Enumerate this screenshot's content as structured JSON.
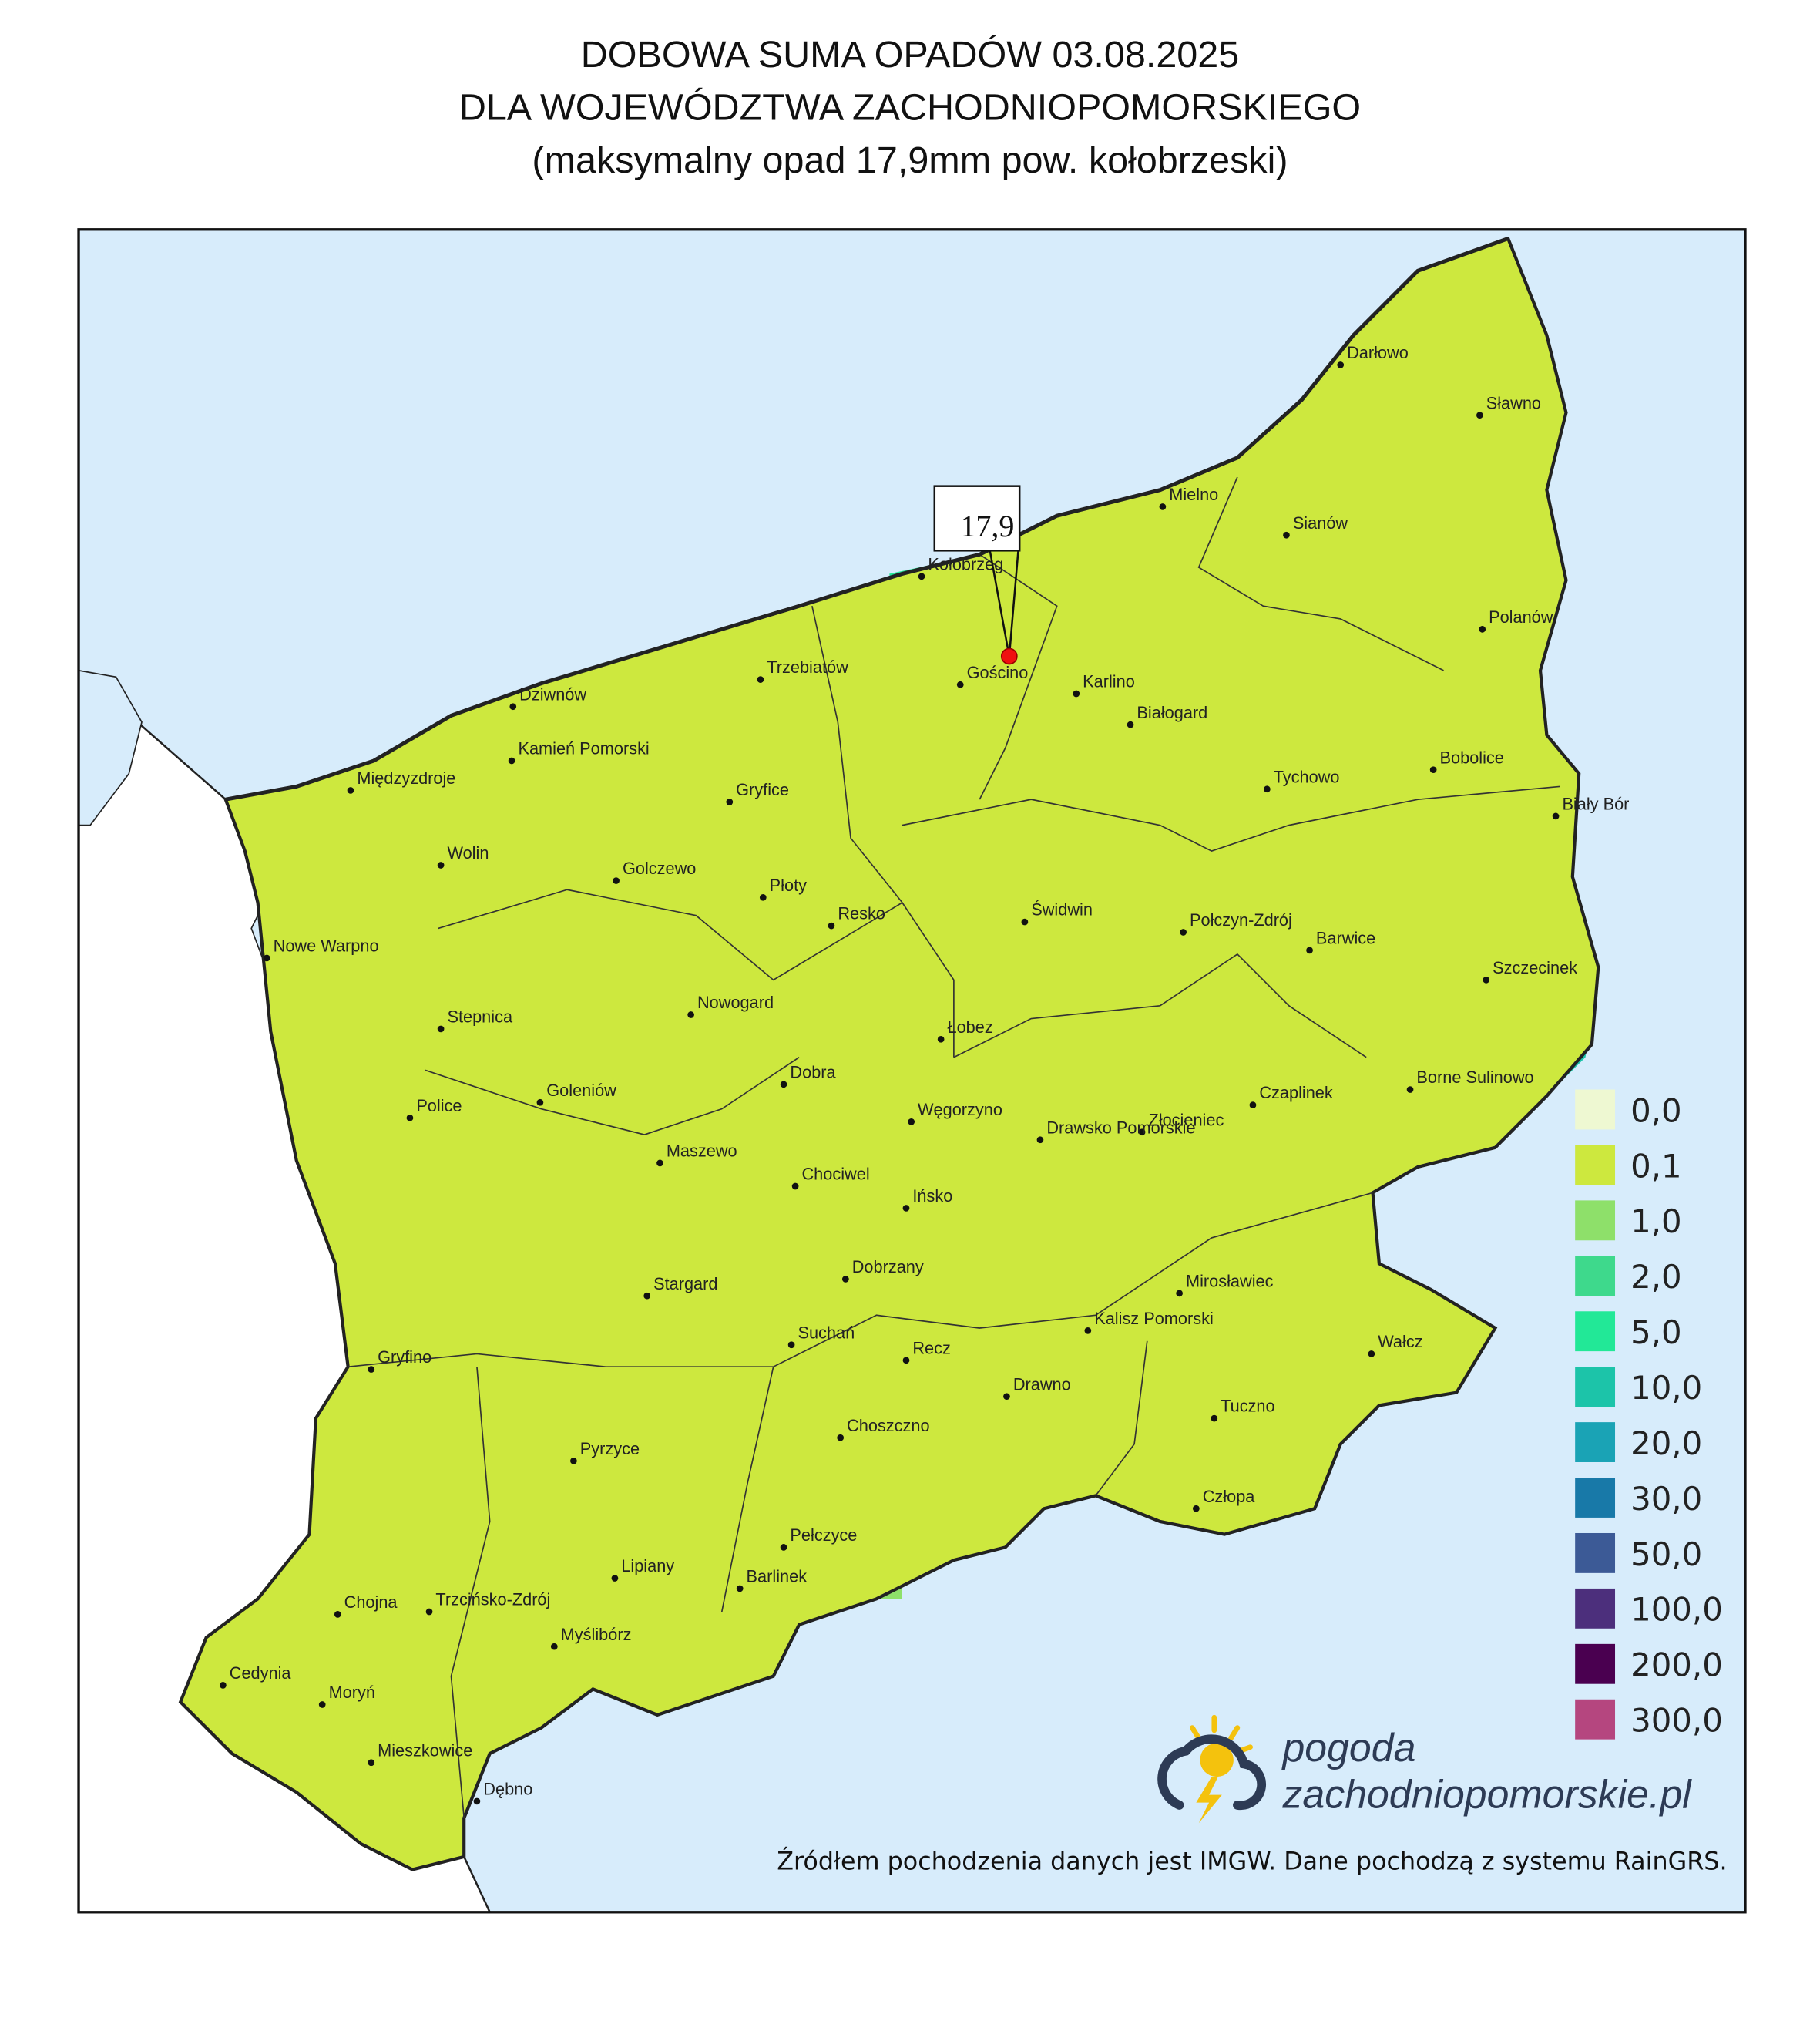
{
  "title": {
    "line1": "DOBOWA SUMA OPADÓW 03.08.2025",
    "line2": "DLA WOJEWÓDZTWA ZACHODNIOPOMORSKIEGO",
    "line3": "(maksymalny opad 17,9mm pow. kołobrzeski)"
  },
  "map": {
    "max_label": "17,9",
    "towns": [
      "Darłowo",
      "Sławno",
      "Mielno",
      "Sianów",
      "Kołobrzeg",
      "Polanów",
      "Trzebiatów",
      "Gościno",
      "Karlino",
      "Białogard",
      "Dziwnów",
      "Kamień Pomorski",
      "Bobolice",
      "Tychowo",
      "Gryfice",
      "Biały Bór",
      "Międzyzdroje",
      "Wolin",
      "Golczewo",
      "Płoty",
      "Resko",
      "Świdwin",
      "Połczyn-Zdrój",
      "Barwice",
      "Nowe Warpno",
      "Szczecinek",
      "Nowogard",
      "Stepnica",
      "Łobez",
      "Dobra",
      "Borne Sulinowo",
      "Goleniów",
      "Czaplinek",
      "Police",
      "Węgorzyno",
      "Złocieniec",
      "Drawsko Pomorskie",
      "Maszewo",
      "Chociwel",
      "Ińsko",
      "Dobrzany",
      "Mirosławiec",
      "Stargard",
      "Kalisz Pomorski",
      "Suchań",
      "Wałcz",
      "Gryfino",
      "Recz",
      "Drawno",
      "Tuczno",
      "Choszczno",
      "Pyrzyce",
      "Człopa",
      "Pełczyce",
      "Lipiany",
      "Barlinek",
      "Chojna",
      "Trzcińsko-Zdrój",
      "Myślibórz",
      "Cedynia",
      "Moryń",
      "Mieszkowice",
      "Dębno"
    ],
    "legend": [
      {
        "label": "0,0",
        "color": "#eef8d2"
      },
      {
        "label": "0,1",
        "color": "#cde83e"
      },
      {
        "label": "1,0",
        "color": "#8ee06a"
      },
      {
        "label": "2,0",
        "color": "#3ed98c"
      },
      {
        "label": "5,0",
        "color": "#22e897"
      },
      {
        "label": "10,0",
        "color": "#1cc4a9"
      },
      {
        "label": "20,0",
        "color": "#1aa3b5"
      },
      {
        "label": "30,0",
        "color": "#1879a8"
      },
      {
        "label": "50,0",
        "color": "#3c5a96"
      },
      {
        "label": "100,0",
        "color": "#4c2f7c"
      },
      {
        "label": "200,0",
        "color": "#4a0050"
      },
      {
        "label": "300,0",
        "color": "#b5467f"
      }
    ]
  },
  "logo": {
    "line1": "pogoda",
    "line2": "zachodniopomorskie.pl"
  },
  "source": "Źródłem pochodzenia danych jest IMGW. Dane pochodzą z systemu RainGRS."
}
